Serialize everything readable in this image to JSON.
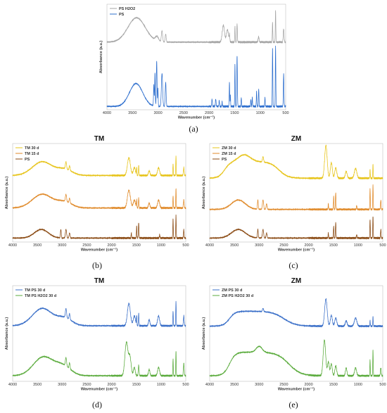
{
  "captions": [
    "(a)",
    "(b)",
    "(c)",
    "(d)",
    "(e)"
  ],
  "colors": {
    "PS": "#2e6fce",
    "PS_H2O2": "#a6a6a6",
    "ZM_PS": "#3a6fc8",
    "green": "#5aab3c",
    "yellow": "#e7c41a",
    "orange": "#e08a2a",
    "brown": "#8a4a13"
  },
  "chart_data": [
    {
      "type": "line",
      "title": "",
      "xlabel": "Wavenumber (cm⁻¹)",
      "ylabel": "Absorbance (a.u.)",
      "xlim": [
        4000,
        500
      ],
      "xreversed": true,
      "xticks": [
        4000,
        3500,
        3000,
        2500,
        2000,
        1500,
        1000,
        500
      ],
      "legend_position": "top-left",
      "series": [
        {
          "name": "PS H2O2",
          "color": "#a6a6a6",
          "profile": "ps_h2o2",
          "offset": 0.62,
          "scale": 0.3
        },
        {
          "name": "PS",
          "color": "#2e6fce",
          "profile": "ps",
          "offset": 0.02,
          "scale": 0.56
        }
      ]
    },
    {
      "type": "line",
      "title": "TM",
      "xlabel": "Wavenumber (cm⁻¹)",
      "ylabel": "Absorbance (a.u.)",
      "xlim": [
        4000,
        500
      ],
      "xreversed": true,
      "xticks": [
        4000,
        3500,
        3000,
        2500,
        2000,
        1500,
        1000,
        500
      ],
      "legend_position": "top-left",
      "series": [
        {
          "name": "TM 30 d",
          "color": "#e7c41a",
          "profile": "tm",
          "offset": 0.66,
          "scale": 0.2
        },
        {
          "name": "TM 15 d",
          "color": "#e08a2a",
          "profile": "tm",
          "offset": 0.33,
          "scale": 0.2
        },
        {
          "name": "PS",
          "color": "#8a4a13",
          "profile": "ps_small",
          "offset": 0.03,
          "scale": 0.22
        }
      ]
    },
    {
      "type": "line",
      "title": "ZM",
      "xlabel": "Wavenumber (cm⁻¹)",
      "ylabel": "Absorbance (a.u.)",
      "xlim": [
        4000,
        500
      ],
      "xreversed": true,
      "xticks": [
        4000,
        3500,
        3000,
        2500,
        2000,
        1500,
        1000,
        500
      ],
      "legend_position": "top-left",
      "series": [
        {
          "name": "ZM 30 d",
          "color": "#e7c41a",
          "profile": "zm30",
          "offset": 0.62,
          "scale": 0.36
        },
        {
          "name": "ZM 15 d",
          "color": "#e08a2a",
          "profile": "ps_small",
          "offset": 0.32,
          "scale": 0.24
        },
        {
          "name": "PS",
          "color": "#8a4a13",
          "profile": "ps_small",
          "offset": 0.03,
          "scale": 0.22
        }
      ]
    },
    {
      "type": "line",
      "title": "TM",
      "xlabel": "Wavenumber (cm⁻¹)",
      "ylabel": "Absorbance (a.u.)",
      "xlim": [
        4000,
        500
      ],
      "xreversed": true,
      "xticks": [
        4000,
        3500,
        3000,
        2500,
        2000,
        1500,
        1000,
        500
      ],
      "legend_position": "top-left",
      "series": [
        {
          "name": "TM PS 30 d",
          "color": "#3a6fc8",
          "profile": "tm",
          "offset": 0.56,
          "scale": 0.26
        },
        {
          "name": "TM PS H2O2 30 d",
          "color": "#5aab3c",
          "profile": "tmh2o2",
          "offset": 0.05,
          "scale": 0.36
        }
      ]
    },
    {
      "type": "line",
      "title": "ZM",
      "xlabel": "Wavenumber (cm⁻¹)",
      "ylabel": "Absorbance (a.u.)",
      "xlim": [
        4000,
        500
      ],
      "xreversed": true,
      "xticks": [
        4000,
        3500,
        3000,
        2500,
        2000,
        1500,
        1000,
        500
      ],
      "legend_position": "top-left",
      "series": [
        {
          "name": "ZM PS 30 d",
          "color": "#3a6fc8",
          "profile": "zmps",
          "offset": 0.56,
          "scale": 0.3
        },
        {
          "name": "ZM PS H2O2 30 d",
          "color": "#5aab3c",
          "profile": "zmh2o2",
          "offset": 0.05,
          "scale": 0.38
        }
      ]
    }
  ]
}
